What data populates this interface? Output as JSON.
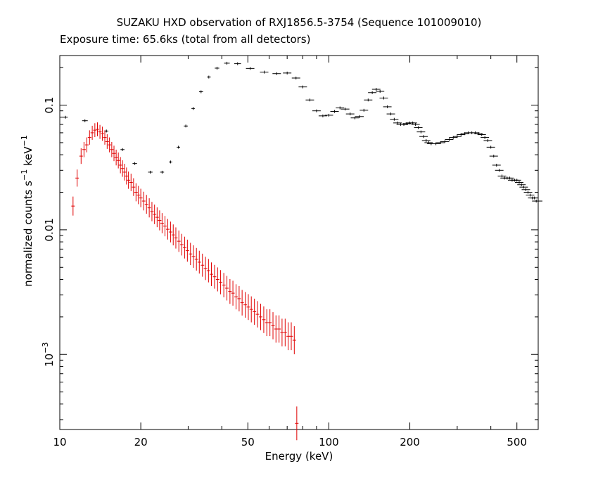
{
  "chart_data": {
    "type": "scatter",
    "title": "SUZAKU HXD observation of RXJ1856.5-3754 (Sequence 101009010)",
    "subtitle": "Exposure time: 65.6ks (total from all detectors)",
    "xlabel": "Energy (keV)",
    "ylabel": {
      "text1": "normalized counts s",
      "sup1": "−1",
      "text2": " keV",
      "sup2": "−1"
    },
    "x_scale": "log",
    "y_scale": "log",
    "xlim": [
      10,
      600
    ],
    "ylim": [
      0.00025,
      0.25
    ],
    "x_ticks": [
      {
        "value": 10,
        "label": "10"
      },
      {
        "value": 20,
        "label": "20"
      },
      {
        "value": 50,
        "label": "50"
      },
      {
        "value": 100,
        "label": "100"
      },
      {
        "value": 200,
        "label": "200"
      },
      {
        "value": 500,
        "label": "500"
      }
    ],
    "y_ticks": [
      {
        "value": 0.1,
        "label": "0.1"
      },
      {
        "value": 0.01,
        "label": "0.01"
      },
      {
        "value": 0.001,
        "base": "10",
        "exp": "−3"
      }
    ],
    "grid": false,
    "legend": "none",
    "series": [
      {
        "color": "#000000",
        "points": [
          [
            10.5,
            0.08,
            0.8
          ],
          [
            12.4,
            0.075,
            1.0
          ],
          [
            14.9,
            0.062,
            0.7
          ],
          [
            17.1,
            0.044,
            0.7
          ],
          [
            19.0,
            0.034,
            0.8
          ],
          [
            21.7,
            0.029,
            0.8
          ],
          [
            24.0,
            0.029,
            0.7
          ],
          [
            25.8,
            0.035,
            0.6
          ],
          [
            27.6,
            0.046,
            0.6
          ],
          [
            29.4,
            0.068,
            0.7
          ],
          [
            31.3,
            0.094,
            0.6
          ],
          [
            33.5,
            0.128,
            0.7
          ],
          [
            35.8,
            0.168,
            0.7
          ],
          [
            38.4,
            0.198,
            0.8
          ],
          [
            41.8,
            0.217,
            1.0
          ],
          [
            45.8,
            0.215,
            1.2
          ],
          [
            51.0,
            0.197,
            1.5
          ],
          [
            57.5,
            0.184,
            1.5
          ],
          [
            64.0,
            0.179,
            1.5
          ],
          [
            70.0,
            0.181,
            1.5
          ],
          [
            75.5,
            0.165,
            1.5
          ],
          [
            80,
            0.14,
            1.5
          ],
          [
            85,
            0.11,
            1.5
          ],
          [
            90,
            0.09,
            1.5
          ],
          [
            95,
            0.082,
            1.5
          ],
          [
            100,
            0.083,
            1.5
          ],
          [
            105,
            0.089,
            1.5
          ],
          [
            110,
            0.095,
            1.5
          ],
          [
            115,
            0.093,
            1.5
          ],
          [
            120,
            0.085,
            1.5
          ],
          [
            125,
            0.079,
            1.5
          ],
          [
            130,
            0.081,
            1.5
          ],
          [
            135,
            0.091,
            1.5
          ],
          [
            140,
            0.11,
            1.5
          ],
          [
            145,
            0.126,
            1.5
          ],
          [
            150,
            0.134,
            1.5
          ],
          [
            155,
            0.129,
            1.5
          ],
          [
            160,
            0.114,
            1.5
          ],
          [
            165,
            0.097,
            1.5
          ],
          [
            170,
            0.085,
            1.5
          ],
          [
            175,
            0.077,
            1.5
          ],
          [
            180,
            0.072,
            1.5
          ],
          [
            185,
            0.07,
            1.5
          ],
          [
            190,
            0.07,
            1.5
          ],
          [
            195,
            0.071,
            1.5
          ],
          [
            200,
            0.072,
            1.5
          ],
          [
            205,
            0.072,
            1.5
          ],
          [
            210,
            0.07,
            1.5
          ],
          [
            215,
            0.066,
            1.5
          ],
          [
            220,
            0.061,
            1.5
          ],
          [
            225,
            0.056,
            1.5
          ],
          [
            230,
            0.052,
            1.5
          ],
          [
            235,
            0.05,
            1.5
          ],
          [
            240,
            0.049,
            1.5
          ],
          [
            250,
            0.049,
            1.5
          ],
          [
            260,
            0.05,
            1.5
          ],
          [
            270,
            0.051,
            1.5
          ],
          [
            280,
            0.053,
            1.5
          ],
          [
            290,
            0.055,
            1.5
          ],
          [
            300,
            0.056,
            1.5
          ],
          [
            310,
            0.058,
            1.5
          ],
          [
            320,
            0.059,
            1.5
          ],
          [
            330,
            0.06,
            1.5
          ],
          [
            340,
            0.06,
            1.5
          ],
          [
            350,
            0.06,
            1.5
          ],
          [
            360,
            0.059,
            1.5
          ],
          [
            370,
            0.058,
            1.5
          ],
          [
            380,
            0.055,
            1.5
          ],
          [
            390,
            0.052,
            1.5
          ],
          [
            400,
            0.046,
            1.5
          ],
          [
            410,
            0.039,
            1.5
          ],
          [
            420,
            0.033,
            1.5
          ],
          [
            430,
            0.03,
            1.5
          ],
          [
            440,
            0.027,
            1.5
          ],
          [
            450,
            0.026,
            1.5
          ],
          [
            460,
            0.026,
            1.5
          ],
          [
            470,
            0.026,
            1.5
          ],
          [
            480,
            0.025,
            1.5
          ],
          [
            490,
            0.025,
            1.5
          ],
          [
            500,
            0.025,
            1.5
          ],
          [
            510,
            0.024,
            1.5
          ],
          [
            520,
            0.023,
            1.5
          ],
          [
            530,
            0.022,
            1.5
          ],
          [
            540,
            0.021,
            1.5
          ],
          [
            550,
            0.02,
            1.5
          ],
          [
            560,
            0.019,
            1.5
          ],
          [
            570,
            0.018,
            1.5
          ],
          [
            580,
            0.018,
            1.5
          ],
          [
            590,
            0.017,
            1.5
          ],
          [
            600,
            0.017,
            1.5
          ]
        ]
      },
      {
        "color": "#e00000",
        "points": [
          [
            11.2,
            0.0155,
            0.1
          ],
          [
            11.6,
            0.026,
            0.1
          ],
          [
            12.0,
            0.039,
            0.1
          ],
          [
            12.3,
            0.044,
            0.1
          ],
          [
            12.6,
            0.048,
            0.1
          ],
          [
            12.9,
            0.055,
            0.1
          ],
          [
            13.2,
            0.06,
            0.1
          ],
          [
            13.5,
            0.063,
            0.1
          ],
          [
            13.8,
            0.064,
            0.1
          ],
          [
            14.1,
            0.061,
            0.1
          ],
          [
            14.4,
            0.059,
            0.1
          ],
          [
            14.7,
            0.055,
            0.1
          ],
          [
            15.0,
            0.051,
            0.1
          ],
          [
            15.3,
            0.048,
            0.1
          ],
          [
            15.6,
            0.044,
            0.1
          ],
          [
            15.9,
            0.041,
            0.1
          ],
          [
            16.2,
            0.038,
            0.1
          ],
          [
            16.5,
            0.036,
            0.1
          ],
          [
            16.8,
            0.033,
            0.1
          ],
          [
            17.1,
            0.031,
            0.1
          ],
          [
            17.4,
            0.029,
            0.1
          ],
          [
            17.7,
            0.027,
            0.1
          ],
          [
            18.0,
            0.025,
            0.1
          ],
          [
            18.4,
            0.024,
            0.1
          ],
          [
            18.8,
            0.022,
            0.1
          ],
          [
            19.2,
            0.02,
            0.1
          ],
          [
            19.6,
            0.019,
            0.1
          ],
          [
            20.0,
            0.018,
            0.1
          ],
          [
            20.5,
            0.017,
            0.1
          ],
          [
            21.0,
            0.016,
            0.1
          ],
          [
            21.5,
            0.015,
            0.1
          ],
          [
            22.0,
            0.014,
            0.1
          ],
          [
            22.5,
            0.0133,
            0.1
          ],
          [
            23.0,
            0.0126,
            0.1
          ],
          [
            23.5,
            0.0119,
            0.1
          ],
          [
            24.0,
            0.0113,
            0.1
          ],
          [
            24.6,
            0.0107,
            0.1
          ],
          [
            25.2,
            0.0101,
            0.1
          ],
          [
            25.8,
            0.0096,
            0.1
          ],
          [
            26.4,
            0.0091,
            0.1
          ],
          [
            27.0,
            0.0086,
            0.1
          ],
          [
            27.7,
            0.0081,
            0.1
          ],
          [
            28.4,
            0.0076,
            0.1
          ],
          [
            29.1,
            0.0072,
            0.1
          ],
          [
            29.8,
            0.0068,
            0.1
          ],
          [
            30.6,
            0.0064,
            0.1
          ],
          [
            31.4,
            0.0061,
            0.1
          ],
          [
            32.2,
            0.0058,
            0.1
          ],
          [
            33.0,
            0.0055,
            0.1
          ],
          [
            33.9,
            0.0052,
            0.1
          ],
          [
            34.8,
            0.0049,
            0.1
          ],
          [
            35.7,
            0.0047,
            0.1
          ],
          [
            36.6,
            0.0044,
            0.1
          ],
          [
            37.6,
            0.0042,
            0.1
          ],
          [
            38.6,
            0.004,
            0.1
          ],
          [
            39.6,
            0.0038,
            0.1
          ],
          [
            40.7,
            0.0036,
            0.1
          ],
          [
            41.8,
            0.0034,
            0.1
          ],
          [
            42.9,
            0.0032,
            0.1
          ],
          [
            44.0,
            0.0031,
            0.1
          ],
          [
            45.2,
            0.0029,
            0.1
          ],
          [
            46.4,
            0.0028,
            0.1
          ],
          [
            47.6,
            0.0026,
            0.1
          ],
          [
            48.9,
            0.0025,
            0.1
          ],
          [
            50.2,
            0.0024,
            0.1
          ],
          [
            51.5,
            0.0023,
            0.1
          ],
          [
            52.9,
            0.0022,
            0.1
          ],
          [
            54.3,
            0.0021,
            0.1
          ],
          [
            55.8,
            0.002,
            0.1
          ],
          [
            57.3,
            0.0019,
            0.1
          ],
          [
            58.8,
            0.0018,
            0.1
          ],
          [
            60.4,
            0.0018,
            0.1
          ],
          [
            62.0,
            0.0017,
            0.1
          ],
          [
            63.6,
            0.0016,
            0.1
          ],
          [
            65.3,
            0.0016,
            0.1
          ],
          [
            67.0,
            0.0015,
            0.1
          ],
          [
            68.8,
            0.0015,
            0.1
          ],
          [
            70.6,
            0.0014,
            0.1
          ],
          [
            72.5,
            0.0014,
            0.1
          ],
          [
            74.4,
            0.0013,
            0.1
          ],
          [
            76.0,
            0.00028,
            0.1
          ]
        ]
      }
    ]
  }
}
